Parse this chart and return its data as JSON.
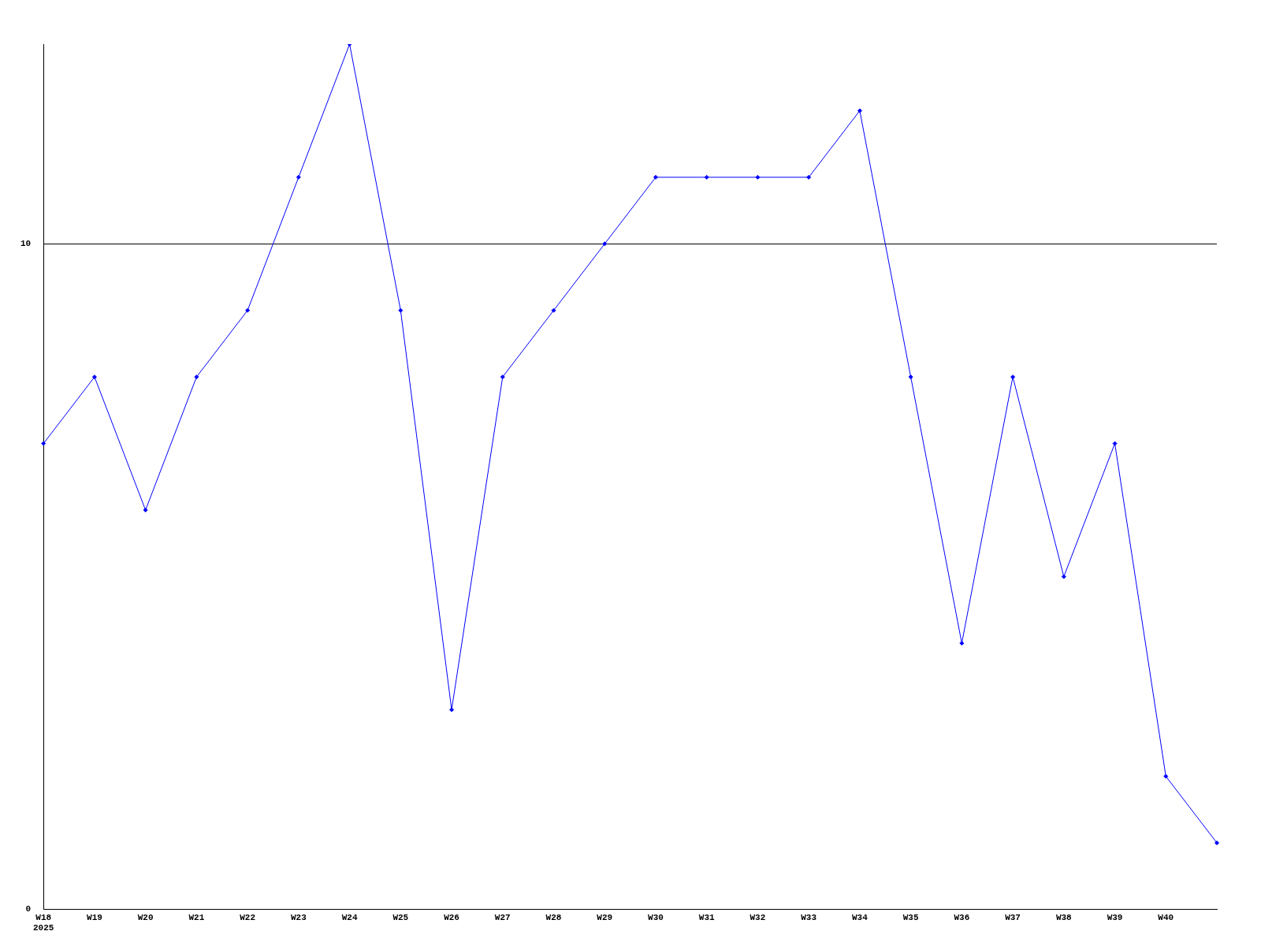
{
  "chart_data": {
    "type": "line",
    "categories": [
      "W18\n2025",
      "W19",
      "W20",
      "W21",
      "W22",
      "W23",
      "W24",
      "W25",
      "W26",
      "W27",
      "W28",
      "W29",
      "W30",
      "W31",
      "W32",
      "W33",
      "W34",
      "W35",
      "W36",
      "W37",
      "W38",
      "W39",
      "W40",
      null
    ],
    "series": [
      {
        "color": "#0000ff",
        "values": [
          7,
          8,
          6,
          8,
          9,
          11,
          13,
          9,
          3,
          8,
          9,
          10,
          11,
          11,
          11,
          11,
          12,
          8,
          4,
          8,
          5,
          7,
          2,
          1
        ]
      }
    ],
    "ylim": [
      0,
      13
    ],
    "yticks": [
      0,
      10
    ],
    "grid": "y",
    "marker": "diamond",
    "line_style": "solid",
    "legend": false
  }
}
